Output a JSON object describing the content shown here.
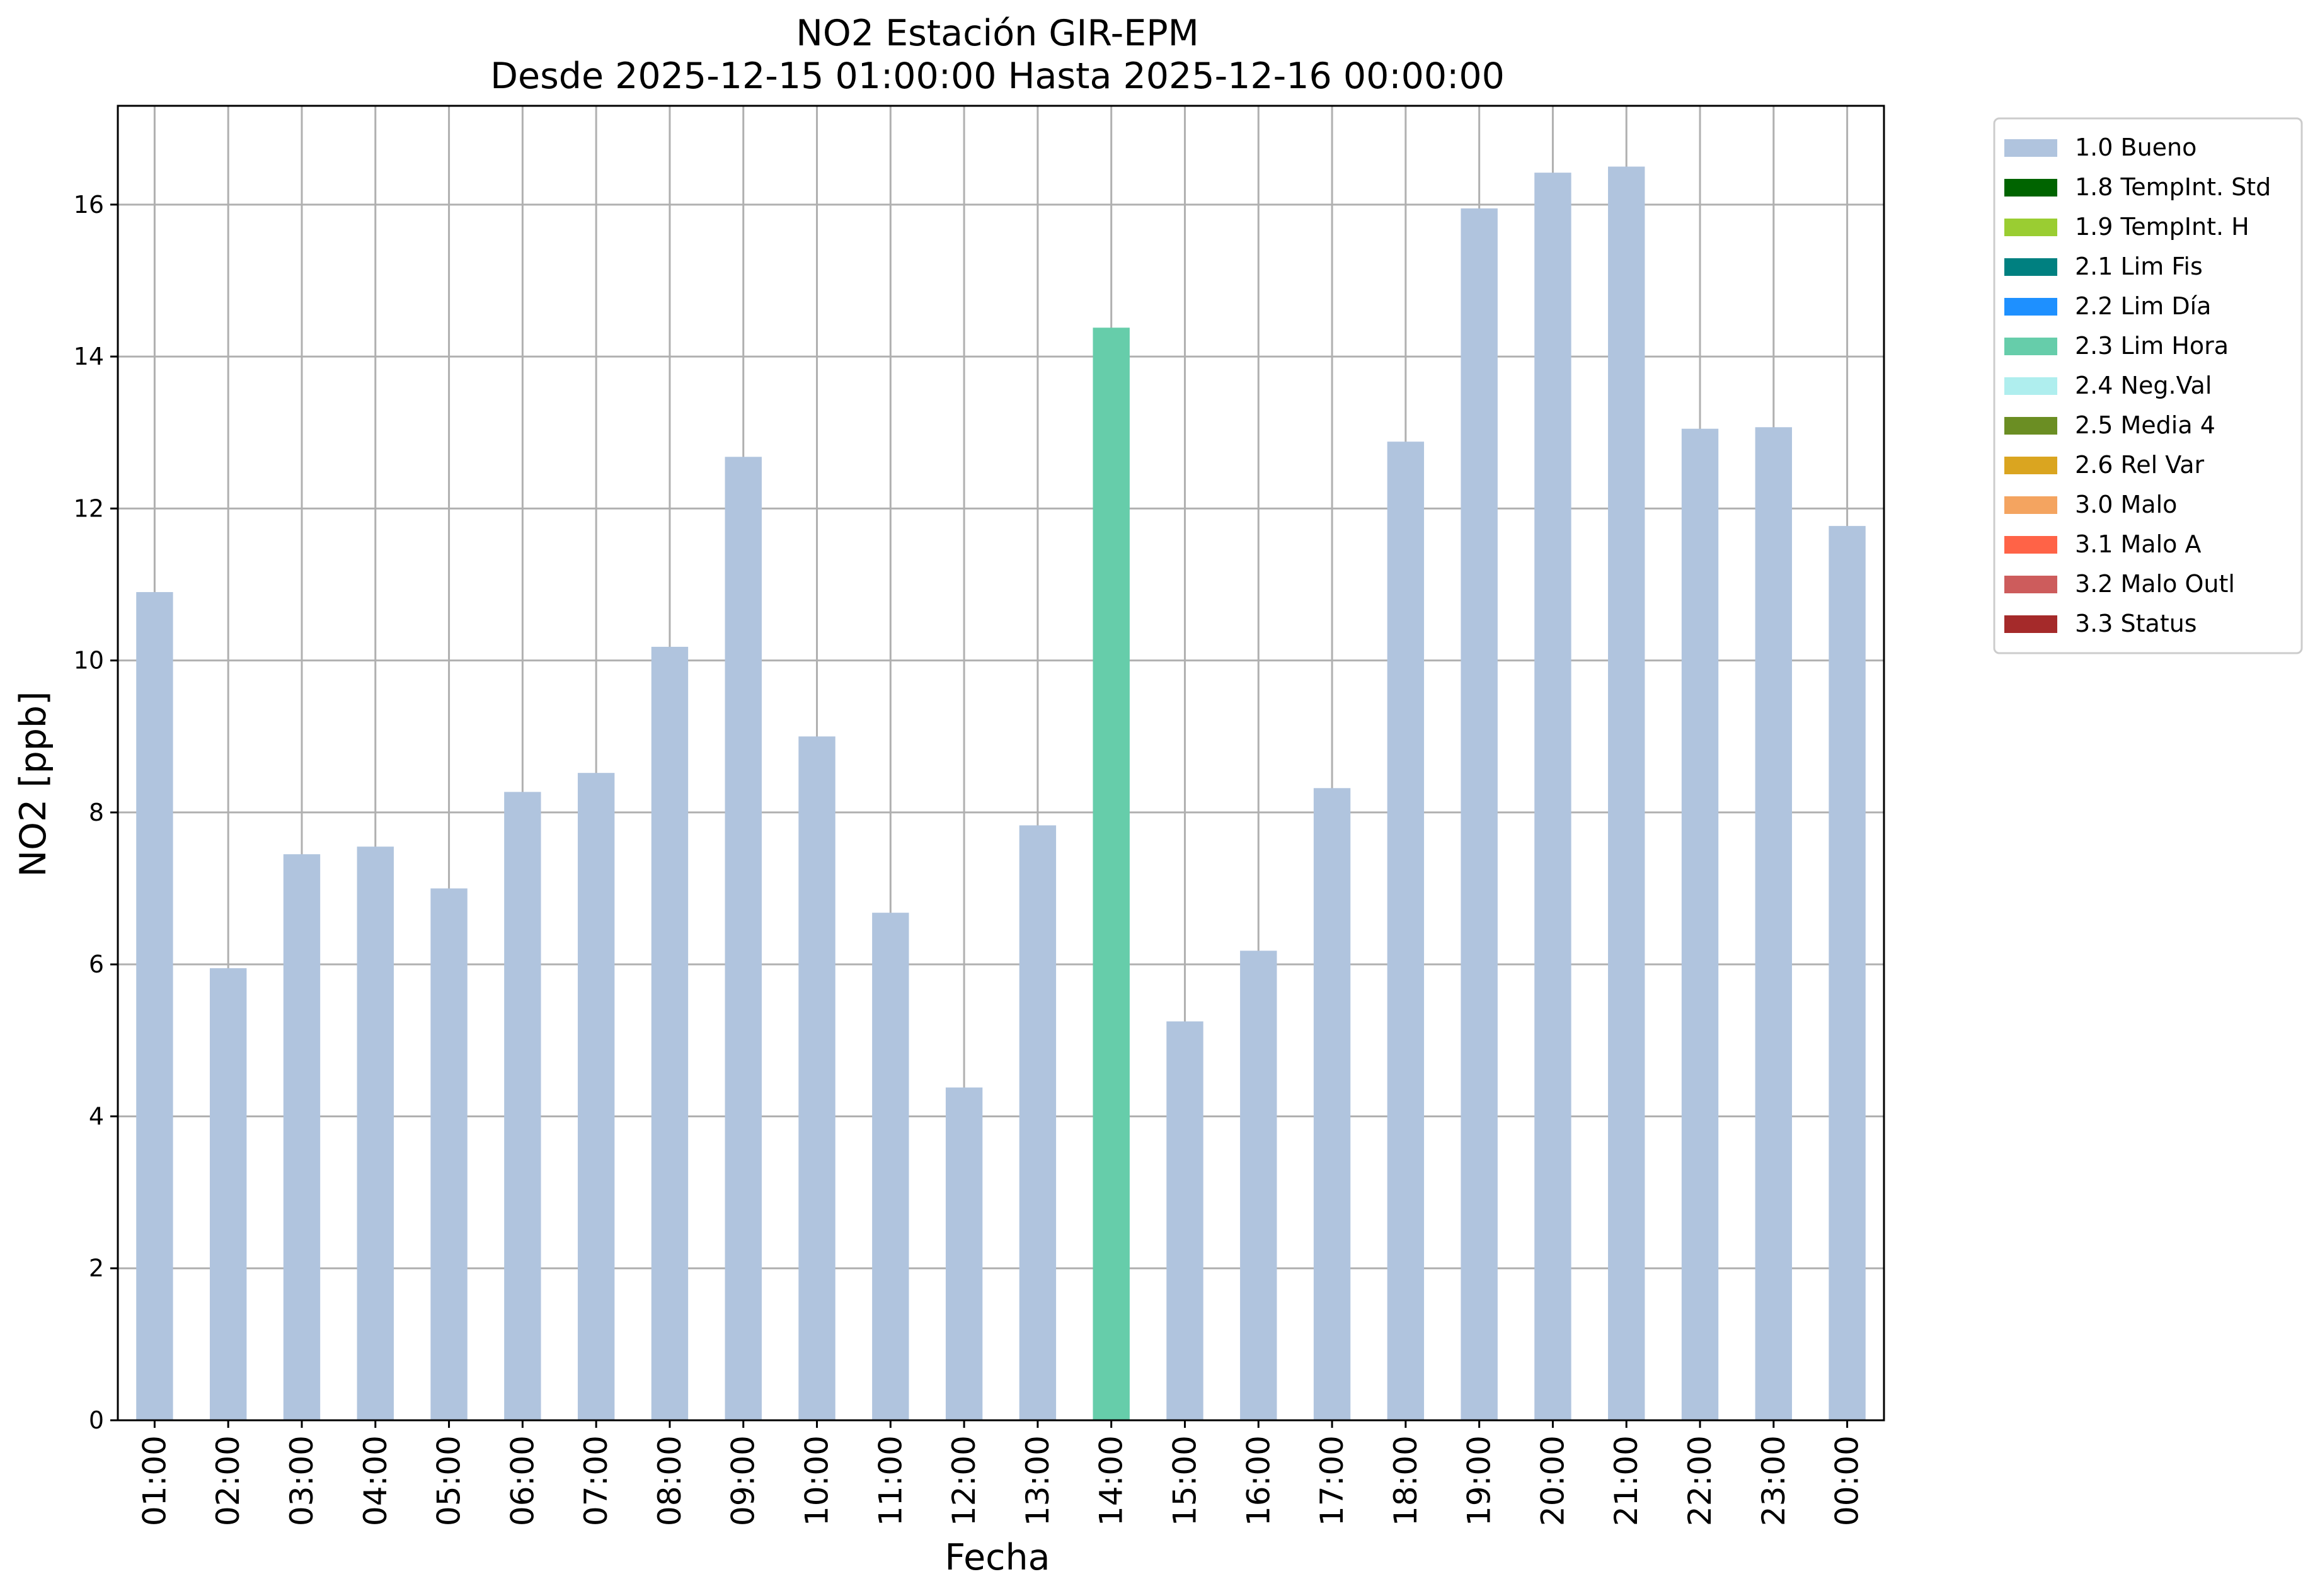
{
  "chart_data": {
    "type": "bar",
    "title": "NO2 Estación GIR-EPM",
    "subtitle": "Desde 2025-12-15 01:00:00 Hasta 2025-12-16 00:00:00",
    "xlabel": "Fecha",
    "ylabel": "NO2 [ppb]",
    "ylim": [
      0,
      17.3
    ],
    "yticks": [
      0,
      2,
      4,
      6,
      8,
      10,
      12,
      14,
      16
    ],
    "grid": true,
    "legend_position": "outside-top-right",
    "categories": [
      "01:00",
      "02:00",
      "03:00",
      "04:00",
      "05:00",
      "06:00",
      "07:00",
      "08:00",
      "09:00",
      "10:00",
      "11:00",
      "12:00",
      "13:00",
      "14:00",
      "15:00",
      "16:00",
      "17:00",
      "18:00",
      "19:00",
      "20:00",
      "21:00",
      "22:00",
      "23:00",
      "00:00"
    ],
    "values": [
      10.9,
      5.95,
      7.45,
      7.55,
      7.0,
      8.27,
      8.52,
      10.18,
      12.68,
      9.0,
      6.68,
      4.38,
      7.83,
      14.38,
      5.25,
      6.18,
      8.32,
      12.88,
      15.95,
      16.42,
      16.5,
      13.05,
      13.07,
      11.77
    ],
    "flags": [
      "1.0 Bueno",
      "1.0 Bueno",
      "1.0 Bueno",
      "1.0 Bueno",
      "1.0 Bueno",
      "1.0 Bueno",
      "1.0 Bueno",
      "1.0 Bueno",
      "1.0 Bueno",
      "1.0 Bueno",
      "1.0 Bueno",
      "1.0 Bueno",
      "1.0 Bueno",
      "2.3 Lim Hora",
      "1.0 Bueno",
      "1.0 Bueno",
      "1.0 Bueno",
      "1.0 Bueno",
      "1.0 Bueno",
      "1.0 Bueno",
      "1.0 Bueno",
      "1.0 Bueno",
      "1.0 Bueno",
      "1.0 Bueno"
    ],
    "legend": [
      {
        "label": "1.0 Bueno",
        "color": "#b0c4de"
      },
      {
        "label": "1.8 TempInt. Std",
        "color": "#006400"
      },
      {
        "label": "1.9 TempInt. H",
        "color": "#9acd32"
      },
      {
        "label": "2.1 Lim Fis",
        "color": "#008080"
      },
      {
        "label": "2.2 Lim Día",
        "color": "#1e90ff"
      },
      {
        "label": "2.3 Lim Hora",
        "color": "#66cdaa"
      },
      {
        "label": "2.4 Neg.Val",
        "color": "#afeeee"
      },
      {
        "label": "2.5 Media 4",
        "color": "#6b8e23"
      },
      {
        "label": "2.6 Rel Var",
        "color": "#daa520"
      },
      {
        "label": "3.0 Malo",
        "color": "#f4a460"
      },
      {
        "label": "3.1 Malo A",
        "color": "#ff6347"
      },
      {
        "label": "3.2 Malo Outl",
        "color": "#cd5c5c"
      },
      {
        "label": "3.3 Status",
        "color": "#a52a2a"
      }
    ]
  }
}
